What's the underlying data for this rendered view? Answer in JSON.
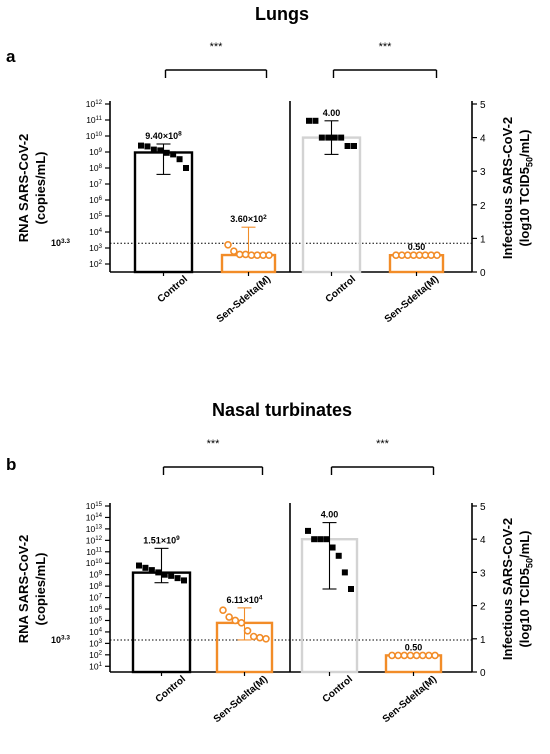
{
  "chart_data": [
    {
      "type": "bar",
      "panel_label": "a",
      "title": "Lungs",
      "left": {
        "ylabel_lines": [
          "RNA SARS-CoV-2",
          "(copies/mL)"
        ],
        "scale": "log",
        "ylim_exp": [
          1.5,
          12
        ],
        "tick_exponents": [
          2,
          3,
          4,
          5,
          6,
          7,
          8,
          9,
          10,
          11,
          12
        ],
        "threshold_label": "10^3.3",
        "threshold_exp": 3.3,
        "categories": [
          "Control",
          "Sen-Sdelta(M)"
        ],
        "bars": [
          {
            "category": "Control",
            "value_exp": 8.97,
            "value_label": "9.40×10^8",
            "error_exp": [
              7.6,
              9.5
            ],
            "color": "#000000",
            "points_exp": [
              9.4,
              9.35,
              9.15,
              9.1,
              8.95,
              8.85,
              8.55,
              8.0
            ]
          },
          {
            "category": "Sen-Sdelta(M)",
            "value_exp": 2.56,
            "value_label": "3.60×10^2",
            "error_exp": [
              2.5,
              4.3
            ],
            "color": "#F28C28",
            "points_exp": [
              3.2,
              2.8,
              2.6,
              2.6,
              2.55,
              2.55,
              2.55,
              2.55
            ]
          }
        ],
        "significance": "***"
      },
      "right": {
        "ylabel_lines": [
          "Infectious SARS-CoV-2",
          "(log10 TCID50/mL)"
        ],
        "ylim": [
          0,
          5
        ],
        "ticks": [
          0,
          1,
          2,
          3,
          4,
          5
        ],
        "categories": [
          "Control",
          "Sen-Sdelta(M)"
        ],
        "bars": [
          {
            "category": "Control",
            "value": 4.0,
            "value_label": "4.00",
            "error": [
              3.5,
              4.5
            ],
            "color": "#d3d3d3",
            "points": [
              4.5,
              4.5,
              4.0,
              4.0,
              4.0,
              4.0,
              3.75,
              3.75
            ]
          },
          {
            "category": "Sen-Sdelta(M)",
            "value": 0.5,
            "value_label": "0.50",
            "error": [
              0.5,
              0.5
            ],
            "color": "#F28C28",
            "points": [
              0.5,
              0.5,
              0.5,
              0.5,
              0.5,
              0.5,
              0.5,
              0.5
            ]
          }
        ],
        "significance": "***"
      }
    },
    {
      "type": "bar",
      "panel_label": "b",
      "title": "Nasal turbinates",
      "left": {
        "ylabel_lines": [
          "RNA SARS-CoV-2",
          "(copies/mL)"
        ],
        "scale": "log",
        "ylim_exp": [
          0.5,
          15
        ],
        "tick_exponents": [
          1,
          2,
          3,
          4,
          5,
          6,
          7,
          8,
          9,
          10,
          11,
          12,
          13,
          14,
          15
        ],
        "threshold_label": "10^3.3",
        "threshold_exp": 3.3,
        "categories": [
          "Control",
          "Sen-Sdelta(M)"
        ],
        "bars": [
          {
            "category": "Control",
            "value_exp": 9.18,
            "value_label": "1.51×10^9",
            "error_exp": [
              8.3,
              11.3
            ],
            "color": "#000000",
            "points_exp": [
              9.8,
              9.6,
              9.4,
              9.2,
              9.0,
              8.9,
              8.7,
              8.5
            ]
          },
          {
            "category": "Sen-Sdelta(M)",
            "value_exp": 4.79,
            "value_label": "6.11×10^4",
            "error_exp": [
              3.3,
              6.1
            ],
            "color": "#F28C28",
            "points_exp": [
              5.9,
              5.3,
              5.0,
              4.8,
              4.1,
              3.6,
              3.5,
              3.4
            ]
          }
        ],
        "significance": "***"
      },
      "right": {
        "ylabel_lines": [
          "Infectious SARS-CoV-2",
          "(log10 TCID50/mL)"
        ],
        "ylim": [
          0,
          5
        ],
        "ticks": [
          0,
          1,
          2,
          3,
          4,
          5
        ],
        "categories": [
          "Control",
          "Sen-Sdelta(M)"
        ],
        "bars": [
          {
            "category": "Control",
            "value": 4.0,
            "value_label": "4.00",
            "error": [
              2.5,
              4.5
            ],
            "color": "#d3d3d3",
            "points": [
              4.25,
              4.0,
              4.0,
              4.0,
              3.75,
              3.5,
              3.0,
              2.5
            ]
          },
          {
            "category": "Sen-Sdelta(M)",
            "value": 0.5,
            "value_label": "0.50",
            "error": [
              0.5,
              0.5
            ],
            "color": "#F28C28",
            "points": [
              0.5,
              0.5,
              0.5,
              0.5,
              0.5,
              0.5,
              0.5,
              0.5
            ]
          }
        ],
        "significance": "***"
      }
    }
  ]
}
